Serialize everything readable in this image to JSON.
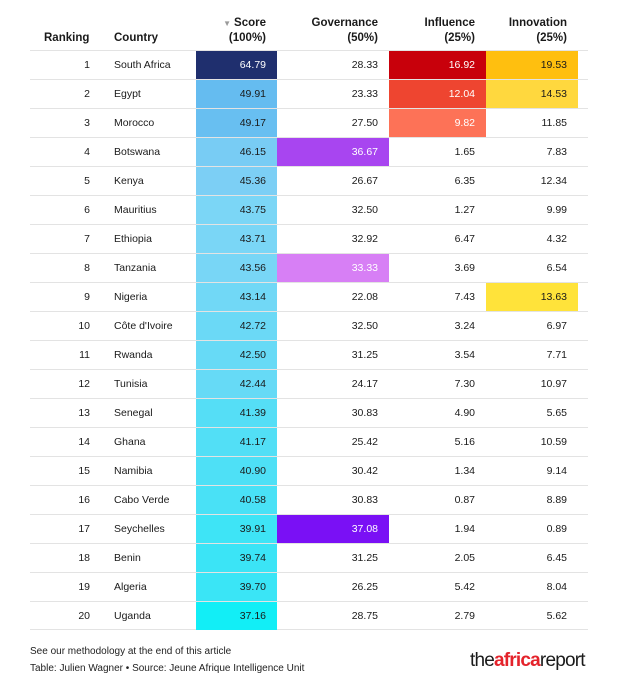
{
  "chart_data": {
    "type": "table",
    "columns": {
      "ranking": "Ranking",
      "country": "Country",
      "score": [
        "Score",
        "(100%)"
      ],
      "governance": [
        "Governance",
        "(50%)"
      ],
      "influence": [
        "Influence",
        "(25%)"
      ],
      "innovation": [
        "Innovation",
        "(25%)"
      ]
    },
    "sorted_by": "score",
    "rows": [
      {
        "rank": "1",
        "country": "South Africa",
        "score": "64.79",
        "governance": "28.33",
        "influence": "16.92",
        "innovation": "19.53"
      },
      {
        "rank": "2",
        "country": "Egypt",
        "score": "49.91",
        "governance": "23.33",
        "influence": "12.04",
        "innovation": "14.53"
      },
      {
        "rank": "3",
        "country": "Morocco",
        "score": "49.17",
        "governance": "27.50",
        "influence": "9.82",
        "innovation": "11.85"
      },
      {
        "rank": "4",
        "country": "Botswana",
        "score": "46.15",
        "governance": "36.67",
        "influence": "1.65",
        "innovation": "7.83"
      },
      {
        "rank": "5",
        "country": "Kenya",
        "score": "45.36",
        "governance": "26.67",
        "influence": "6.35",
        "innovation": "12.34"
      },
      {
        "rank": "6",
        "country": "Mauritius",
        "score": "43.75",
        "governance": "32.50",
        "influence": "1.27",
        "innovation": "9.99"
      },
      {
        "rank": "7",
        "country": "Ethiopia",
        "score": "43.71",
        "governance": "32.92",
        "influence": "6.47",
        "innovation": "4.32"
      },
      {
        "rank": "8",
        "country": "Tanzania",
        "score": "43.56",
        "governance": "33.33",
        "influence": "3.69",
        "innovation": "6.54"
      },
      {
        "rank": "9",
        "country": "Nigeria",
        "score": "43.14",
        "governance": "22.08",
        "influence": "7.43",
        "innovation": "13.63"
      },
      {
        "rank": "10",
        "country": "Côte d'Ivoire",
        "score": "42.72",
        "governance": "32.50",
        "influence": "3.24",
        "innovation": "6.97"
      },
      {
        "rank": "11",
        "country": "Rwanda",
        "score": "42.50",
        "governance": "31.25",
        "influence": "3.54",
        "innovation": "7.71"
      },
      {
        "rank": "12",
        "country": "Tunisia",
        "score": "42.44",
        "governance": "24.17",
        "influence": "7.30",
        "innovation": "10.97"
      },
      {
        "rank": "13",
        "country": "Senegal",
        "score": "41.39",
        "governance": "30.83",
        "influence": "4.90",
        "innovation": "5.65"
      },
      {
        "rank": "14",
        "country": "Ghana",
        "score": "41.17",
        "governance": "25.42",
        "influence": "5.16",
        "innovation": "10.59"
      },
      {
        "rank": "15",
        "country": "Namibia",
        "score": "40.90",
        "governance": "30.42",
        "influence": "1.34",
        "innovation": "9.14"
      },
      {
        "rank": "16",
        "country": "Cabo Verde",
        "score": "40.58",
        "governance": "30.83",
        "influence": "0.87",
        "innovation": "8.89"
      },
      {
        "rank": "17",
        "country": "Seychelles",
        "score": "39.91",
        "governance": "37.08",
        "influence": "1.94",
        "innovation": "0.89"
      },
      {
        "rank": "18",
        "country": "Benin",
        "score": "39.74",
        "governance": "31.25",
        "influence": "2.05",
        "innovation": "6.45"
      },
      {
        "rank": "19",
        "country": "Algeria",
        "score": "39.70",
        "governance": "26.25",
        "influence": "5.42",
        "innovation": "8.04"
      },
      {
        "rank": "20",
        "country": "Uganda",
        "score": "37.16",
        "governance": "28.75",
        "influence": "2.79",
        "innovation": "5.62"
      }
    ],
    "highlights": {
      "governance": {
        "Botswana": "#a845f0",
        "Tanzania": "#d77ff5",
        "Seychelles": "#7a10f5"
      },
      "influence": {
        "South Africa": "#c8000b",
        "Egypt": "#ee4530",
        "Morocco": "#fd7257"
      },
      "innovation": {
        "South Africa": "#ffbf0f",
        "Egypt": "#ffd83e",
        "Nigeria": "#ffe33a"
      }
    }
  },
  "footer": {
    "note": "See our methodology at the end of this article",
    "credit": "Table: Julien Wagner • Source: Jeune Afrique Intelligence Unit"
  },
  "logo": {
    "the": "the",
    "africa": "africa",
    "report": "report"
  },
  "icons": {
    "sort": "sort-descending-icon"
  },
  "colors": {
    "rule": "#e3e3e3",
    "logo_accent": "#e4232b"
  }
}
